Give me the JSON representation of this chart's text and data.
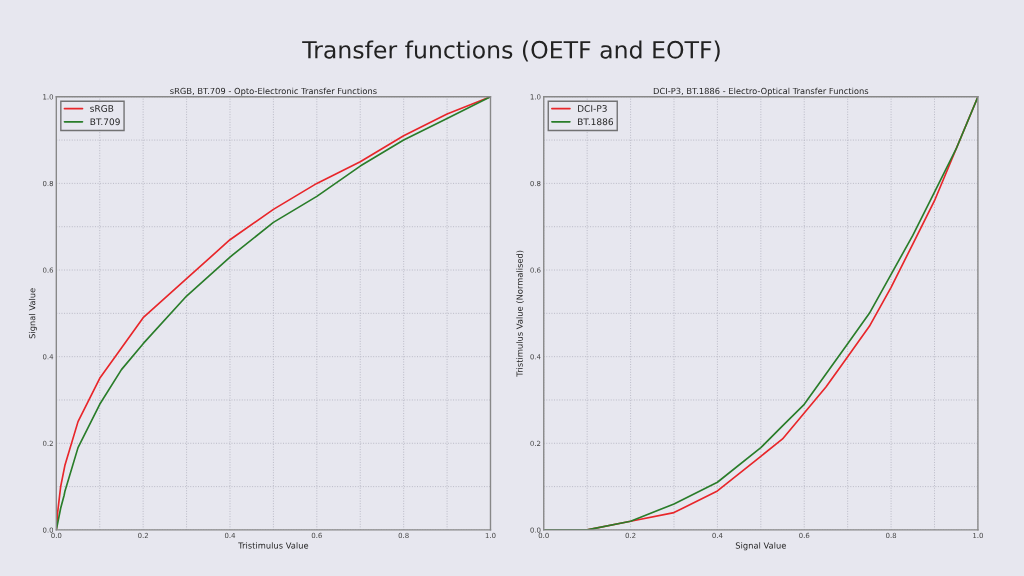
{
  "chart_data": [
    {
      "type": "line",
      "title": "sRGB, BT.709 - Opto-Electronic Transfer Functions",
      "xlabel": "Tristimulus Value",
      "ylabel": "Signal Value",
      "annotations": [
        "Transfer functions (OETF and EOTF)"
      ],
      "xlim": [
        0.0,
        1.0
      ],
      "ylim": [
        0.0,
        1.0
      ],
      "xticks": [
        {
          "value": 0,
          "label": "0.0"
        },
        {
          "value": 0.1,
          "label": null
        },
        0.2,
        {
          "value": 0.3,
          "label": null
        },
        0.4,
        {
          "value": 0.5,
          "label": null
        },
        0.6,
        {
          "value": 0.7,
          "label": null
        },
        0.8,
        {
          "value": 0.9,
          "label": null
        },
        {
          "value": 1,
          "label": "1.0"
        }
      ],
      "yticks": [
        {
          "value": 0,
          "label": "0.0"
        },
        {
          "value": 0.1,
          "label": null
        },
        0.2,
        {
          "value": 0.3,
          "label": null
        },
        0.4,
        {
          "value": 0.5,
          "label": null
        },
        0.6,
        {
          "value": 0.7,
          "label": null
        },
        0.8,
        {
          "value": 0.9,
          "label": null
        },
        {
          "value": 1,
          "label": "1.0"
        }
      ],
      "grid": true,
      "legend": "top left",
      "series": [
        {
          "name": "sRGB",
          "color": "#e8262a",
          "x": [
            0,
            0.003,
            0.01,
            0.02,
            0.05,
            0.1,
            0.15,
            0.2,
            0.3,
            0.4,
            0.5,
            0.6,
            0.7,
            0.8,
            0.9,
            1.0
          ],
          "values": [
            0,
            0.04,
            0.1,
            0.15,
            0.25,
            0.35,
            0.42,
            0.49,
            0.58,
            0.67,
            0.74,
            0.8,
            0.85,
            0.91,
            0.96,
            1.0
          ]
        },
        {
          "name": "BT.709",
          "color": "#2a7d2a",
          "x": [
            0,
            0.01,
            0.018,
            0.02,
            0.05,
            0.1,
            0.15,
            0.2,
            0.3,
            0.4,
            0.5,
            0.6,
            0.7,
            0.8,
            0.9,
            1.0
          ],
          "values": [
            0,
            0.05,
            0.08,
            0.09,
            0.19,
            0.29,
            0.37,
            0.43,
            0.54,
            0.63,
            0.71,
            0.77,
            0.84,
            0.9,
            0.95,
            1.0
          ]
        }
      ]
    },
    {
      "type": "line",
      "title": "DCI-P3, BT.1886 - Electro-Optical Transfer Functions",
      "xlabel": "Signal Value",
      "ylabel": "Tristimulus Value (Normalised)",
      "xlim": [
        0.0,
        1.0
      ],
      "ylim": [
        0.0,
        1.0
      ],
      "xticks": [
        {
          "value": 0,
          "label": "0.0"
        },
        {
          "value": 0.1,
          "label": null
        },
        0.2,
        {
          "value": 0.3,
          "label": null
        },
        0.4,
        {
          "value": 0.5,
          "label": null
        },
        0.6,
        {
          "value": 0.7,
          "label": null
        },
        0.8,
        {
          "value": 0.9,
          "label": null
        },
        {
          "value": 1,
          "label": "1.0"
        }
      ],
      "yticks": [
        {
          "value": 0,
          "label": "0.0"
        },
        {
          "value": 0.1,
          "label": null
        },
        0.2,
        {
          "value": 0.3,
          "label": null
        },
        0.4,
        {
          "value": 0.5,
          "label": null
        },
        0.6,
        {
          "value": 0.7,
          "label": null
        },
        0.8,
        {
          "value": 0.9,
          "label": null
        },
        {
          "value": 1,
          "label": "1.0"
        }
      ],
      "grid": true,
      "legend": "top left",
      "series": [
        {
          "name": "DCI-P3",
          "color": "#e8262a",
          "x": [
            0,
            0.1,
            0.2,
            0.3,
            0.4,
            0.5,
            0.55,
            0.6,
            0.65,
            0.7,
            0.75,
            0.8,
            0.85,
            0.9,
            0.95,
            1.0
          ],
          "values": [
            0,
            0.0,
            0.02,
            0.04,
            0.09,
            0.17,
            0.21,
            0.27,
            0.33,
            0.4,
            0.47,
            0.56,
            0.66,
            0.76,
            0.88,
            1.0
          ]
        },
        {
          "name": "BT.1886",
          "color": "#2a7d2a",
          "x": [
            0,
            0.1,
            0.2,
            0.3,
            0.4,
            0.5,
            0.55,
            0.6,
            0.65,
            0.7,
            0.75,
            0.8,
            0.85,
            0.9,
            0.95,
            1.0
          ],
          "values": [
            0,
            0.0,
            0.02,
            0.06,
            0.11,
            0.19,
            0.24,
            0.29,
            0.36,
            0.43,
            0.5,
            0.59,
            0.68,
            0.78,
            0.88,
            1.0
          ]
        }
      ]
    }
  ]
}
